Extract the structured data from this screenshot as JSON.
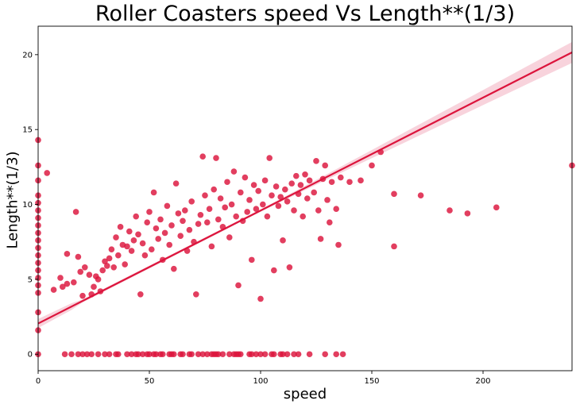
{
  "chart_data": {
    "type": "scatter",
    "title": "Roller Coasters speed Vs Length**(1/3)",
    "xlabel": "speed",
    "ylabel": "Length**(1/3)",
    "xlim": [
      0,
      240
    ],
    "ylim": [
      -1.1,
      21.9
    ],
    "xticks": [
      0,
      50,
      100,
      150,
      200
    ],
    "yticks": [
      0,
      5,
      10,
      15,
      20
    ],
    "grid": false,
    "colors": {
      "points": "#dc143c",
      "line": "#dc143c",
      "band": "#f4b6c5"
    },
    "regression": {
      "x": [
        0,
        240
      ],
      "y": [
        2.05,
        20.15
      ],
      "ci_halfwidth_x": [
        40,
        100,
        130,
        160,
        200,
        240
      ],
      "ci_halfwidth": [
        0.1,
        0.08,
        0.18,
        0.32,
        0.5,
        0.7
      ]
    },
    "points": [
      [
        0,
        14.3
      ],
      [
        0,
        12.6
      ],
      [
        0,
        11.6
      ],
      [
        0,
        10.6
      ],
      [
        0,
        10.1
      ],
      [
        0,
        9.6
      ],
      [
        0,
        9.1
      ],
      [
        0,
        8.6
      ],
      [
        0,
        8.1
      ],
      [
        0,
        7.6
      ],
      [
        0,
        7.1
      ],
      [
        0,
        6.6
      ],
      [
        0,
        6.1
      ],
      [
        0,
        5.6
      ],
      [
        0,
        5.1
      ],
      [
        0,
        4.6
      ],
      [
        0,
        4.1
      ],
      [
        0,
        2.8
      ],
      [
        0,
        1.6
      ],
      [
        0,
        0
      ],
      [
        4,
        12.1
      ],
      [
        7,
        4.3
      ],
      [
        10,
        5.1
      ],
      [
        11,
        4.5
      ],
      [
        13,
        4.7
      ],
      [
        13,
        6.7
      ],
      [
        17,
        9.5
      ],
      [
        18,
        6.5
      ],
      [
        16,
        4.8
      ],
      [
        19,
        5.5
      ],
      [
        20,
        3.9
      ],
      [
        21,
        5.8
      ],
      [
        23,
        5.3
      ],
      [
        24,
        4.0
      ],
      [
        25,
        4.5
      ],
      [
        26,
        5.2
      ],
      [
        27,
        5.0
      ],
      [
        28,
        4.2
      ],
      [
        29,
        5.6
      ],
      [
        30,
        6.2
      ],
      [
        31,
        5.9
      ],
      [
        32,
        6.4
      ],
      [
        33,
        7.0
      ],
      [
        34,
        5.8
      ],
      [
        35,
        7.8
      ],
      [
        36,
        6.6
      ],
      [
        37,
        8.5
      ],
      [
        38,
        7.3
      ],
      [
        39,
        6.0
      ],
      [
        40,
        7.2
      ],
      [
        41,
        8.2
      ],
      [
        42,
        6.9
      ],
      [
        43,
        7.6
      ],
      [
        44,
        9.2
      ],
      [
        45,
        8.0
      ],
      [
        46,
        4.0
      ],
      [
        47,
        7.4
      ],
      [
        48,
        6.6
      ],
      [
        49,
        8.8
      ],
      [
        50,
        9.5
      ],
      [
        51,
        7.0
      ],
      [
        52,
        10.8
      ],
      [
        53,
        8.4
      ],
      [
        54,
        7.7
      ],
      [
        55,
        9.0
      ],
      [
        56,
        6.3
      ],
      [
        57,
        8.1
      ],
      [
        58,
        9.9
      ],
      [
        59,
        7.3
      ],
      [
        60,
        8.6
      ],
      [
        61,
        5.7
      ],
      [
        62,
        11.4
      ],
      [
        63,
        9.4
      ],
      [
        64,
        7.9
      ],
      [
        65,
        8.9
      ],
      [
        66,
        9.6
      ],
      [
        67,
        6.9
      ],
      [
        68,
        8.3
      ],
      [
        69,
        10.2
      ],
      [
        70,
        7.5
      ],
      [
        71,
        4.0
      ],
      [
        72,
        8.7
      ],
      [
        73,
        9.3
      ],
      [
        74,
        13.2
      ],
      [
        75,
        10.6
      ],
      [
        76,
        8.8
      ],
      [
        77,
        9.7
      ],
      [
        78,
        7.2
      ],
      [
        79,
        11.0
      ],
      [
        80,
        13.1
      ],
      [
        81,
        9.0
      ],
      [
        82,
        10.4
      ],
      [
        83,
        8.5
      ],
      [
        84,
        9.8
      ],
      [
        85,
        11.5
      ],
      [
        86,
        7.8
      ],
      [
        87,
        10.0
      ],
      [
        88,
        12.2
      ],
      [
        89,
        9.2
      ],
      [
        90,
        4.6
      ],
      [
        91,
        10.8
      ],
      [
        92,
        8.9
      ],
      [
        93,
        11.8
      ],
      [
        94,
        9.5
      ],
      [
        95,
        10.3
      ],
      [
        96,
        6.3
      ],
      [
        97,
        11.3
      ],
      [
        98,
        9.7
      ],
      [
        99,
        10.9
      ],
      [
        100,
        3.7
      ],
      [
        101,
        10.0
      ],
      [
        102,
        11.6
      ],
      [
        103,
        9.2
      ],
      [
        104,
        13.1
      ],
      [
        105,
        10.6
      ],
      [
        106,
        5.6
      ],
      [
        107,
        11.2
      ],
      [
        108,
        9.9
      ],
      [
        109,
        10.5
      ],
      [
        110,
        7.6
      ],
      [
        111,
        11.0
      ],
      [
        112,
        10.2
      ],
      [
        113,
        5.8
      ],
      [
        114,
        11.4
      ],
      [
        115,
        9.6
      ],
      [
        116,
        11.9
      ],
      [
        117,
        10.7
      ],
      [
        118,
        11.3
      ],
      [
        119,
        9.2
      ],
      [
        120,
        12.0
      ],
      [
        121,
        10.4
      ],
      [
        122,
        11.6
      ],
      [
        124,
        10.8
      ],
      [
        125,
        12.9
      ],
      [
        126,
        9.6
      ],
      [
        127,
        7.7
      ],
      [
        128,
        11.7
      ],
      [
        129,
        12.6
      ],
      [
        130,
        10.3
      ],
      [
        131,
        8.8
      ],
      [
        132,
        11.5
      ],
      [
        134,
        9.7
      ],
      [
        135,
        7.3
      ],
      [
        136,
        11.8
      ],
      [
        140,
        11.5
      ],
      [
        145,
        11.6
      ],
      [
        150,
        12.6
      ],
      [
        154,
        13.5
      ],
      [
        160,
        7.2
      ],
      [
        160,
        10.7
      ],
      [
        172,
        10.6
      ],
      [
        185,
        9.6
      ],
      [
        193,
        9.4
      ],
      [
        206,
        9.8
      ],
      [
        240,
        12.6
      ],
      [
        12,
        0
      ],
      [
        15,
        0
      ],
      [
        18,
        0
      ],
      [
        20,
        0
      ],
      [
        22,
        0
      ],
      [
        24,
        0
      ],
      [
        27,
        0
      ],
      [
        30,
        0
      ],
      [
        32,
        0
      ],
      [
        35,
        0
      ],
      [
        36,
        0
      ],
      [
        40,
        0
      ],
      [
        42,
        0
      ],
      [
        44,
        0
      ],
      [
        45,
        0
      ],
      [
        47,
        0
      ],
      [
        49,
        0
      ],
      [
        50,
        0
      ],
      [
        52,
        0
      ],
      [
        53,
        0
      ],
      [
        55,
        0
      ],
      [
        56,
        0
      ],
      [
        59,
        0
      ],
      [
        60,
        0
      ],
      [
        61,
        0
      ],
      [
        64,
        0
      ],
      [
        65,
        0
      ],
      [
        68,
        0
      ],
      [
        69,
        0
      ],
      [
        72,
        0
      ],
      [
        74,
        0
      ],
      [
        76,
        0
      ],
      [
        78,
        0
      ],
      [
        79,
        0
      ],
      [
        80,
        0
      ],
      [
        81,
        0
      ],
      [
        83,
        0
      ],
      [
        86,
        0
      ],
      [
        88,
        0
      ],
      [
        89,
        0
      ],
      [
        90,
        0
      ],
      [
        91,
        0
      ],
      [
        95,
        0
      ],
      [
        96,
        0
      ],
      [
        98,
        0
      ],
      [
        100,
        0
      ],
      [
        102,
        0
      ],
      [
        105,
        0
      ],
      [
        106,
        0
      ],
      [
        109,
        0
      ],
      [
        110,
        0
      ],
      [
        112,
        0
      ],
      [
        115,
        0
      ],
      [
        117,
        0
      ],
      [
        122,
        0
      ],
      [
        129,
        0
      ],
      [
        134,
        0
      ],
      [
        137,
        0
      ]
    ]
  }
}
